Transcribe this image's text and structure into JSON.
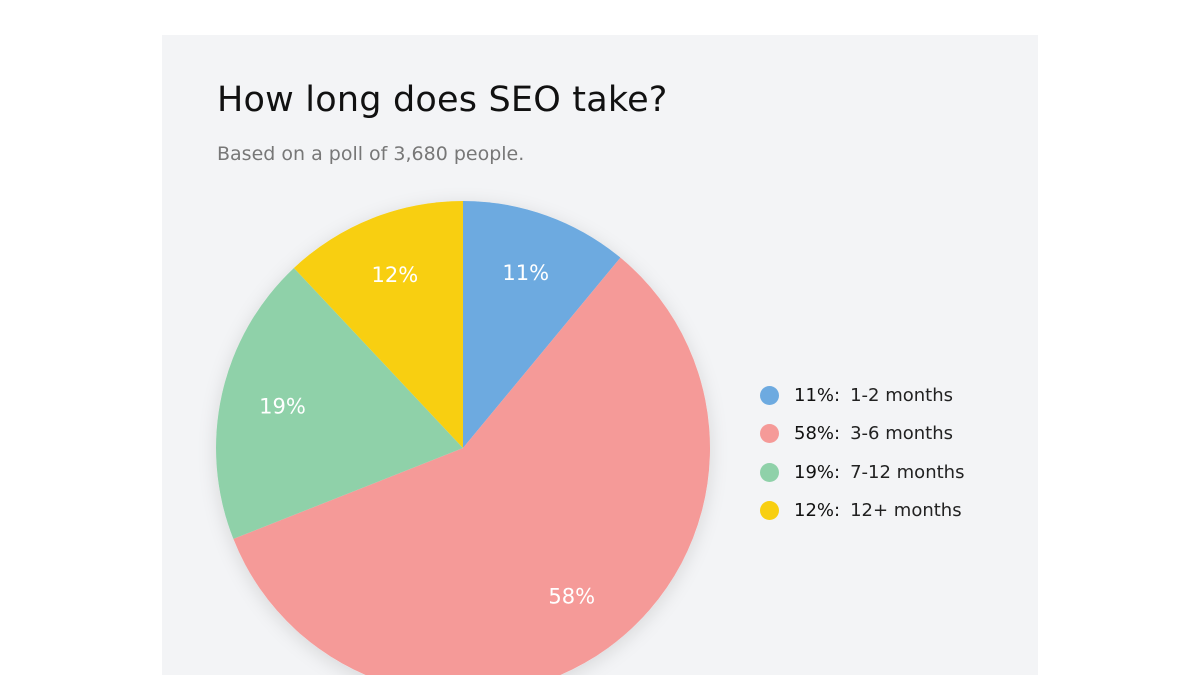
{
  "header": {
    "title": "How long does SEO take?",
    "subtitle": "Based on a poll of 3,680 people."
  },
  "chart_data": {
    "type": "pie",
    "title": "How long does SEO take?",
    "subtitle": "Based on a poll of 3,680 people.",
    "start": "top",
    "direction": "clockwise",
    "legend_position": "right",
    "slices": [
      {
        "label": "1-2 months",
        "value": 11,
        "value_label": "11%",
        "legend_pct": "11%:",
        "color": "#6daae0"
      },
      {
        "label": "3-6 months",
        "value": 58,
        "value_label": "58%",
        "legend_pct": "58%:",
        "color": "#f59a98"
      },
      {
        "label": "7-12 months",
        "value": 19,
        "value_label": "19%",
        "legend_pct": "19%:",
        "color": "#8fd1a9"
      },
      {
        "label": "12+ months",
        "value": 12,
        "value_label": "12%",
        "legend_pct": "12%:",
        "color": "#f8cf11"
      }
    ]
  }
}
